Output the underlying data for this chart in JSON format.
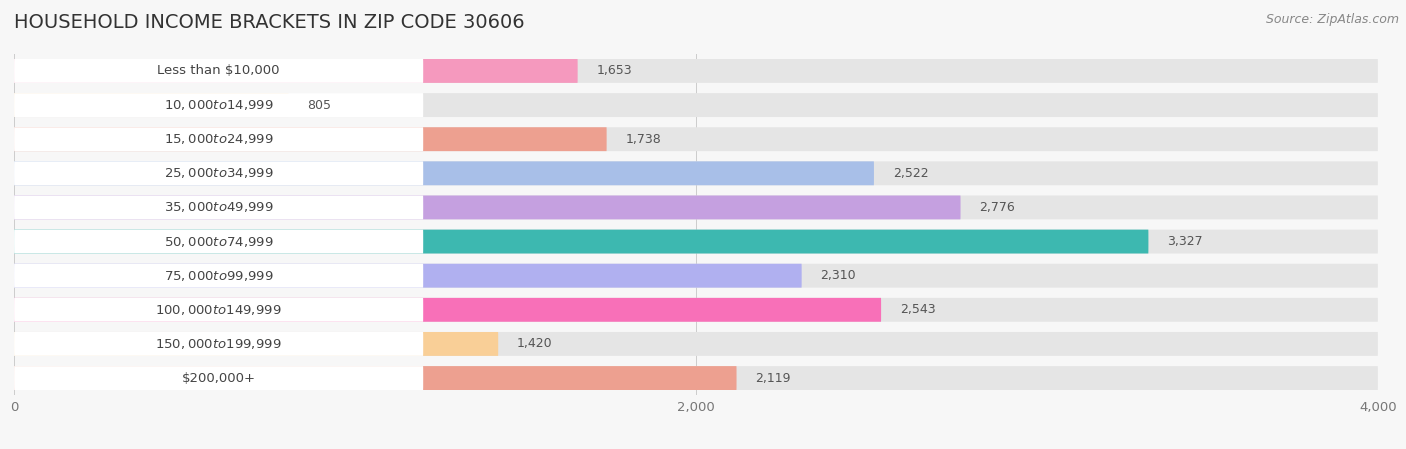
{
  "title": "HOUSEHOLD INCOME BRACKETS IN ZIP CODE 30606",
  "source": "Source: ZipAtlas.com",
  "categories": [
    "Less than $10,000",
    "$10,000 to $14,999",
    "$15,000 to $24,999",
    "$25,000 to $34,999",
    "$35,000 to $49,999",
    "$50,000 to $74,999",
    "$75,000 to $99,999",
    "$100,000 to $149,999",
    "$150,000 to $199,999",
    "$200,000+"
  ],
  "values": [
    1653,
    805,
    1738,
    2522,
    2776,
    3327,
    2310,
    2543,
    1420,
    2119
  ],
  "bar_colors": [
    "#f599be",
    "#f9cf97",
    "#eda090",
    "#a8bfe8",
    "#c5a0e0",
    "#3db8b0",
    "#b0b0f0",
    "#f870b8",
    "#f9cf97",
    "#eda090"
  ],
  "background_color": "#f7f7f7",
  "bar_bg_color": "#e5e5e5",
  "label_bg_color": "#ffffff",
  "xlim": [
    0,
    4000
  ],
  "xticks": [
    0,
    2000,
    4000
  ],
  "title_fontsize": 14,
  "label_fontsize": 9.5,
  "value_fontsize": 9,
  "source_fontsize": 9
}
